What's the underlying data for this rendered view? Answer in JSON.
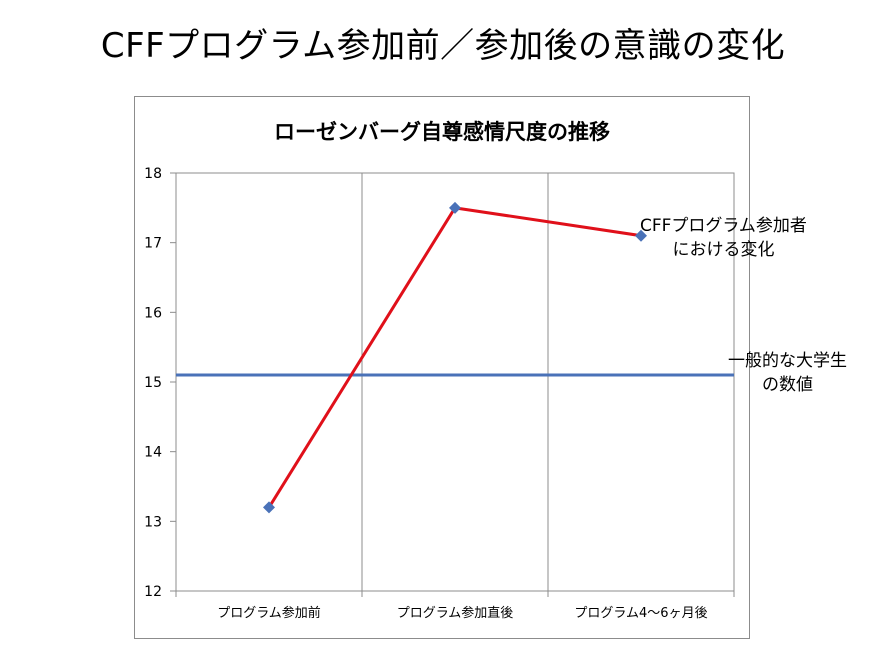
{
  "slide": {
    "title": "CFFプログラム参加前／参加後の意識の変化"
  },
  "chart_data": {
    "type": "line",
    "title": "ローゼンバーグ自尊感情尺度の推移",
    "categories": [
      "プログラム参加前",
      "プログラム参加直後",
      "プログラム4〜6ヶ月後"
    ],
    "ylim": [
      12,
      18
    ],
    "yticks": [
      12,
      13,
      14,
      15,
      16,
      17,
      18
    ],
    "grid": true,
    "series": [
      {
        "name_lines": [
          "CFFプログラム参加者",
          "における変化"
        ],
        "values": [
          13.2,
          17.5,
          17.1
        ],
        "color": "#e0101a",
        "marker_color": "#4a72b8"
      }
    ],
    "reference_line": {
      "label_lines": [
        "一般的な大学生",
        "の数値"
      ],
      "value": 15.1,
      "color": "#4a72b8"
    },
    "axis_color": "#8c8c8c"
  }
}
